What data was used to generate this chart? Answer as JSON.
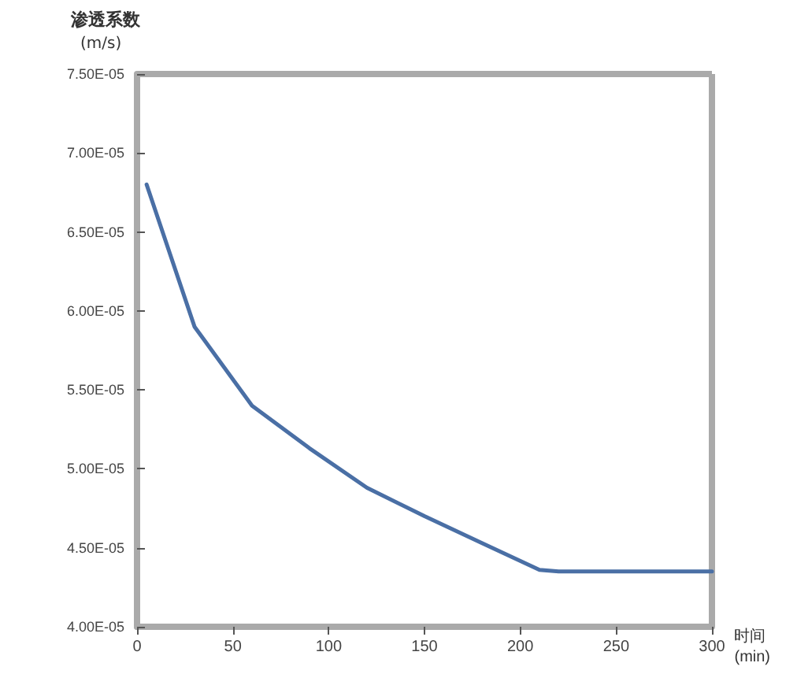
{
  "chart_data": {
    "type": "line",
    "xlabel": "时间\n(min)",
    "ylabel": "渗透系数\n(m/s)",
    "x": [
      5,
      30,
      60,
      90,
      120,
      150,
      180,
      210,
      220,
      300
    ],
    "series": [
      {
        "color": "#4a6fa5",
        "values": [
          6.8e-05,
          5.9e-05,
          5.4e-05,
          5.13e-05,
          4.88e-05,
          4.7e-05,
          4.53e-05,
          4.36e-05,
          4.35e-05,
          4.35e-05
        ]
      }
    ],
    "xlim": [
      0,
      300
    ],
    "xticks": [
      0,
      50,
      100,
      150,
      200,
      250,
      300
    ],
    "ylim": [
      4e-05,
      7.5e-05
    ],
    "yticks": [
      {
        "value": 4e-05,
        "label": "4.00E-05"
      },
      {
        "value": 4.5e-05,
        "label": "4.50E-05"
      },
      {
        "value": 5e-05,
        "label": "5.00E-05"
      },
      {
        "value": 5.5e-05,
        "label": "5.50E-05"
      },
      {
        "value": 6e-05,
        "label": "6.00E-05"
      },
      {
        "value": 6.5e-05,
        "label": "6.50E-05"
      },
      {
        "value": 7e-05,
        "label": "7.00E-05"
      },
      {
        "value": 7.5e-05,
        "label": "7.50E-05"
      }
    ],
    "grid": false,
    "marker": "none",
    "line_style": "solid"
  }
}
